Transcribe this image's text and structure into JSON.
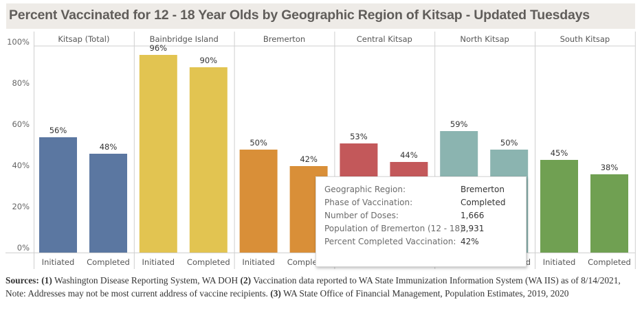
{
  "title": "Percent Vaccinated for 12 - 18 Year Olds by Geographic Region of Kitsap - Updated Tuesdays",
  "chart_data": {
    "type": "bar",
    "title": "Percent Vaccinated for 12 - 18 Year Olds by Geographic Region of Kitsap - Updated Tuesdays",
    "xlabel": "",
    "ylabel": "",
    "ylim": [
      0,
      100
    ],
    "yticks": [
      "0%",
      "20%",
      "40%",
      "60%",
      "80%",
      "100%"
    ],
    "ytick_values": [
      0,
      20,
      40,
      60,
      80,
      100
    ],
    "grid": false,
    "categories": [
      "Initiated",
      "Completed"
    ],
    "panels": [
      {
        "region": "Kitsap (Total)",
        "color": "#5b77a1",
        "values": [
          56,
          48
        ],
        "labels": [
          "56%",
          "48%"
        ]
      },
      {
        "region": "Bainbridge Island",
        "color": "#e2c451",
        "values": [
          96,
          90
        ],
        "labels": [
          "96%",
          "90%"
        ]
      },
      {
        "region": "Bremerton",
        "color": "#d98f38",
        "values": [
          50,
          42
        ],
        "labels": [
          "50%",
          "42%"
        ]
      },
      {
        "region": "Central Kitsap",
        "color": "#c3585a",
        "values": [
          53,
          44
        ],
        "labels": [
          "53%",
          "44%"
        ]
      },
      {
        "region": "North Kitsap",
        "color": "#8bb4b0",
        "values": [
          59,
          50
        ],
        "labels": [
          "59%",
          "50%"
        ]
      },
      {
        "region": "South Kitsap",
        "color": "#70a052",
        "values": [
          45,
          38
        ],
        "labels": [
          "45%",
          "38%"
        ]
      }
    ]
  },
  "tooltip": {
    "rows": [
      {
        "label": "Geographic Region:",
        "value": "Bremerton"
      },
      {
        "label": "Phase of Vaccination:",
        "value": "Completed"
      },
      {
        "label": "Number of Doses:",
        "value": "1,666"
      },
      {
        "label": "Population of Bremerton (12 - 18):",
        "value": "3,931"
      },
      {
        "label": "Percent Completed Vaccination:",
        "value": "42%"
      }
    ]
  },
  "sources": {
    "lead": "Sources:",
    "p1_num": "(1)",
    "p1_text": " Washington Disease Reporting System, WA DOH ",
    "p2_num": "(2)",
    "p2_text": " Vaccination data reported to WA State Immunization Information System (WA IIS) as of 8/14/2021, Note: Addresses may not be most current address of vaccine recipients. ",
    "p3_num": "(3)",
    "p3_text": " WA State Office of Financial Management, Population Estimates, 2019, 2020"
  }
}
